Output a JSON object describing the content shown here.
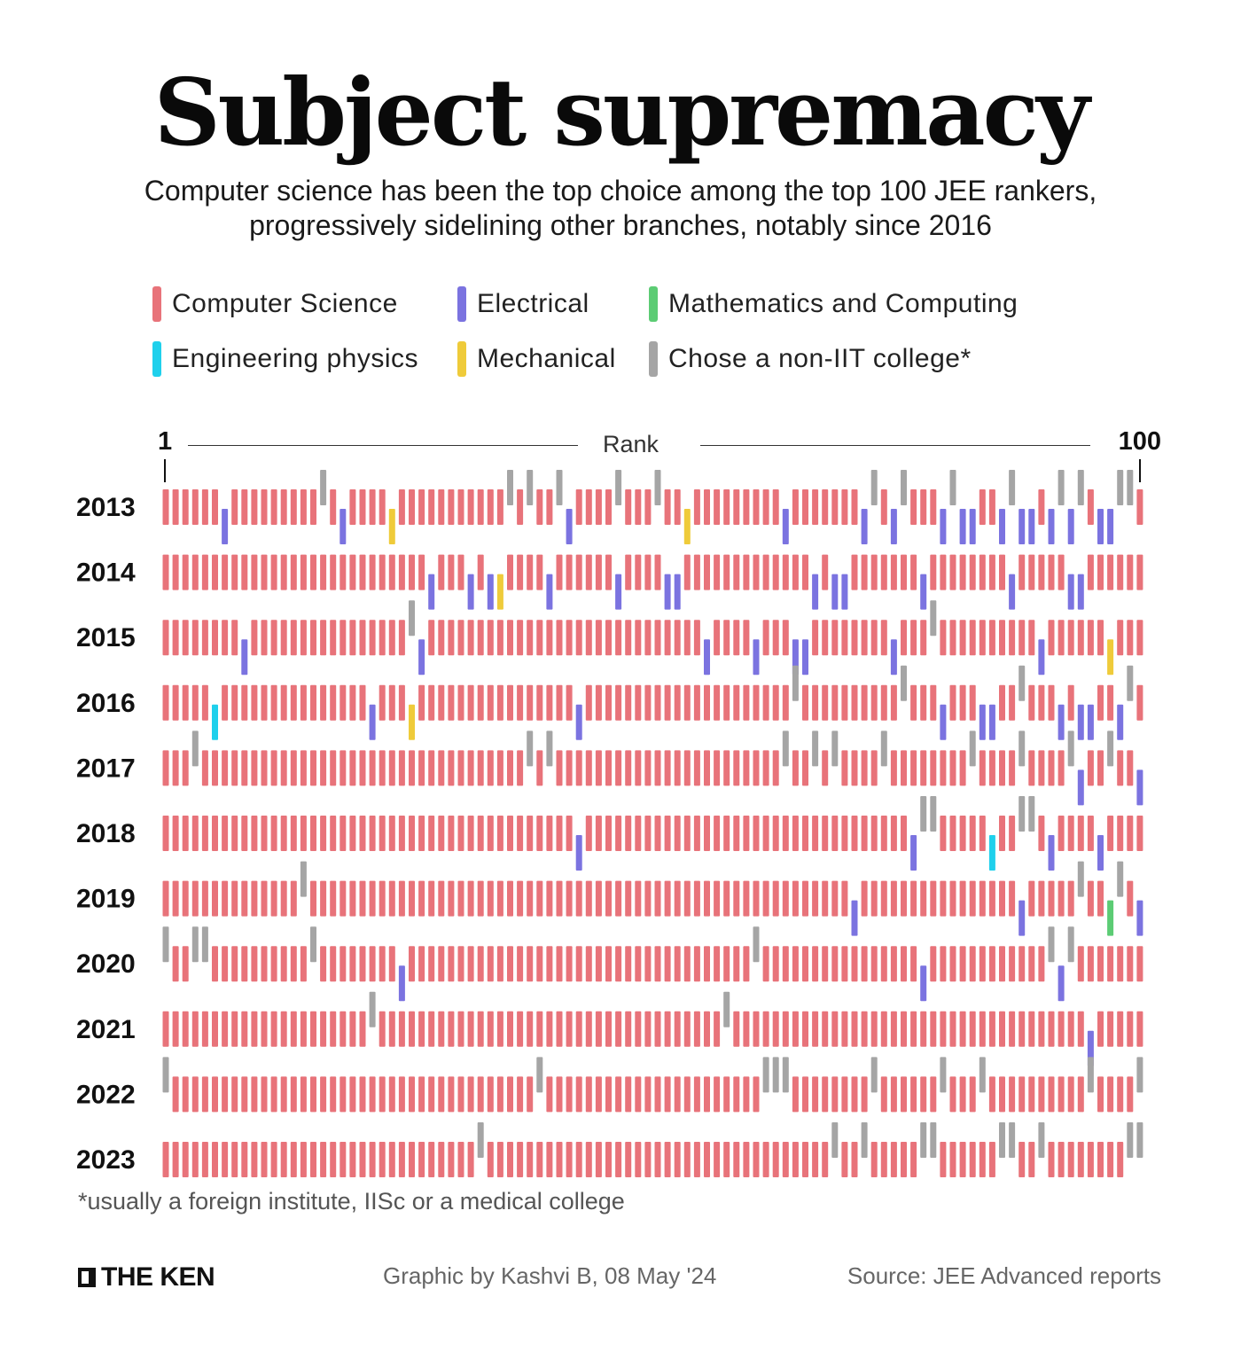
{
  "header": {
    "title": "Subject supremacy",
    "subtitle_line1": "Computer science has been the top choice among the top 100 JEE rankers,",
    "subtitle_line2": "progressively sidelining other branches, notably since 2016"
  },
  "legend": [
    {
      "key": "CS",
      "label": "Computer Science",
      "color": "#e8737a"
    },
    {
      "key": "E",
      "label": "Electrical",
      "color": "#7b73e0"
    },
    {
      "key": "MC",
      "label": "Mathematics and Computing",
      "color": "#5ccc74"
    },
    {
      "key": "EP",
      "label": "Engineering physics",
      "color": "#1fd0ec"
    },
    {
      "key": "M",
      "label": "Mechanical",
      "color": "#efcb3a"
    },
    {
      "key": "G",
      "label": "Chose a non-IIT college*",
      "color": "#a5a5a5"
    }
  ],
  "axis": {
    "start": "1",
    "end": "100",
    "label": "Rank"
  },
  "chart_data": {
    "type": "heatmap",
    "title": "Subject supremacy",
    "xlabel": "Rank",
    "x_range": [
      1,
      100
    ],
    "default_branch": "CS",
    "branches": {
      "CS": "Computer Science",
      "E": "Electrical",
      "MC": "Mathematics and Computing",
      "EP": "Engineering physics",
      "M": "Mechanical",
      "G": "Chose a non-IIT college*"
    },
    "rows": [
      {
        "year": "2013",
        "E": [
          7,
          19,
          42,
          64,
          72,
          75,
          80,
          82,
          83,
          86,
          88,
          89,
          91,
          93,
          96,
          97
        ],
        "G": [
          17,
          36,
          38,
          41,
          47,
          51,
          73,
          76,
          81,
          87,
          92,
          94,
          98,
          99
        ],
        "M": [
          24,
          54
        ],
        "EP": [],
        "MC": []
      },
      {
        "year": "2014",
        "E": [
          28,
          32,
          34,
          40,
          47,
          52,
          53,
          67,
          69,
          70,
          78,
          87,
          93,
          94
        ],
        "G": [],
        "M": [
          35
        ],
        "EP": [],
        "MC": []
      },
      {
        "year": "2015",
        "E": [
          9,
          27,
          56,
          61,
          65,
          66,
          75,
          90
        ],
        "G": [
          26,
          79
        ],
        "M": [
          97
        ],
        "EP": [],
        "MC": []
      },
      {
        "year": "2016",
        "E": [
          22,
          43,
          80,
          84,
          85,
          92,
          94,
          95,
          98
        ],
        "G": [
          65,
          76,
          88,
          99
        ],
        "M": [
          26
        ],
        "EP": [
          6
        ],
        "MC": []
      },
      {
        "year": "2017",
        "E": [
          94,
          100
        ],
        "G": [
          4,
          38,
          40,
          64,
          67,
          69,
          74,
          83,
          88,
          93,
          97
        ],
        "M": [],
        "EP": [],
        "MC": []
      },
      {
        "year": "2018",
        "E": [
          43,
          77,
          91,
          96
        ],
        "G": [
          78,
          79,
          88,
          89
        ],
        "M": [],
        "EP": [
          85
        ],
        "MC": []
      },
      {
        "year": "2019",
        "E": [
          71,
          88,
          100
        ],
        "G": [
          15,
          94,
          98
        ],
        "M": [],
        "EP": [],
        "MC": [
          97
        ]
      },
      {
        "year": "2020",
        "E": [
          25,
          78,
          92
        ],
        "G": [
          1,
          4,
          5,
          16,
          61,
          91,
          93
        ],
        "M": [],
        "EP": [],
        "MC": []
      },
      {
        "year": "2021",
        "E": [
          95
        ],
        "G": [
          22,
          58
        ],
        "M": [],
        "EP": [],
        "MC": []
      },
      {
        "year": "2022",
        "E": [],
        "G": [
          1,
          39,
          62,
          63,
          64,
          73,
          80,
          84,
          95,
          100
        ],
        "M": [],
        "EP": [],
        "MC": []
      },
      {
        "year": "2023",
        "E": [],
        "G": [
          33,
          69,
          72,
          78,
          79,
          86,
          87,
          90,
          99,
          100
        ],
        "M": [],
        "EP": [],
        "MC": []
      }
    ]
  },
  "footer": {
    "footnote": "*usually a foreign institute, IISc or a medical college",
    "brand": "THE KEN",
    "credit": "Graphic by Kashvi B, 08 May '24",
    "source": "Source: JEE Advanced reports"
  }
}
